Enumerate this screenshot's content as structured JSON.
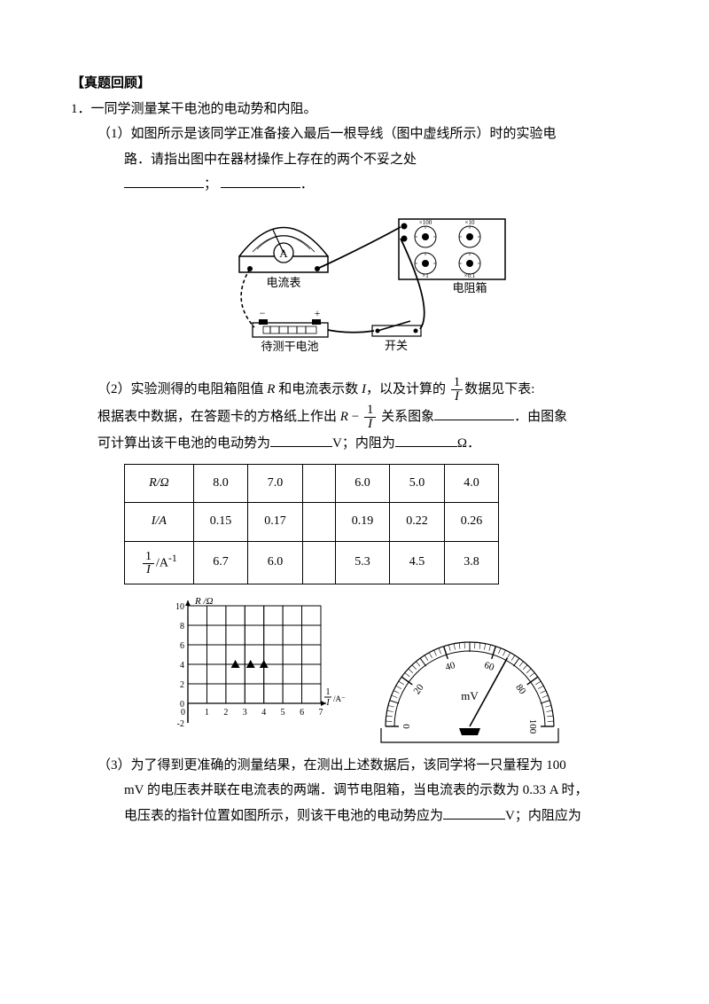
{
  "header": "【真题回顾】",
  "q_num": "1．",
  "q_stem": "一同学测量某干电池的电动势和内阻。",
  "part1_label": "（1）",
  "part1_text_a": "如图所示是该同学正准备接入最后一根导线（图中虚线所示）时的实验电",
  "part1_text_b": "路．请指出图中在器材操作上存在的两个不妥之处",
  "semicolon": "；",
  "period": "．",
  "circuit": {
    "ammeter_label": "A",
    "ammeter_text": "电流表",
    "resbox_text": "电阻箱",
    "battery_text": "待测干电池",
    "switch_text": "开关",
    "dial_top": "×100",
    "dial_top2": "×10",
    "dial_bot": "×1",
    "dial_bot2": "×0.1",
    "minus": "−",
    "plus": "+"
  },
  "part2_label": "（2）",
  "part2_text_a": "实验测得的电阻箱阻值 ",
  "part2_R": "R",
  "part2_text_b": " 和电流表示数 ",
  "part2_I": "I",
  "part2_text_c": "，以及计算的",
  "part2_text_d": "数据见下表:",
  "part2_line2_a": "根据表中数据，在答题卡的方格纸上作出",
  "part2_line2_b": "关系图象",
  "part2_line2_c": "．由图象",
  "part2_line3_a": "可计算出该干电池的电动势为",
  "part2_line3_b": "V；内阻为",
  "part2_line3_c": "Ω．",
  "table": {
    "type": "table",
    "columns": [
      "R/Ω",
      "I/A",
      "invI"
    ],
    "row1_head": "R/Ω",
    "row2_head": "I/A",
    "row3_head_frac_num": "1",
    "row3_head_frac_den": "I",
    "row3_head_unit": "/A",
    "row3_head_sup": "-1",
    "r1": [
      "8.0",
      "7.0",
      "",
      "6.0",
      "5.0",
      "4.0"
    ],
    "r2": [
      "0.15",
      "0.17",
      "",
      "0.19",
      "0.22",
      "0.26"
    ],
    "r3": [
      "6.7",
      "6.0",
      "",
      "5.3",
      "4.5",
      "3.8"
    ]
  },
  "grid_chart": {
    "type": "scatter",
    "xlim": [
      0,
      7
    ],
    "ylim": [
      -2,
      10
    ],
    "xticks": [
      0,
      1,
      2,
      3,
      4,
      5,
      6,
      7
    ],
    "yticks": [
      -2,
      0,
      2,
      4,
      6,
      8,
      10
    ],
    "xlabel_frac_num": "1",
    "xlabel_frac_den": "I",
    "xlabel_unit": "/A⁻¹",
    "ylabel": "R /Ω",
    "grid_color": "#000000",
    "bg_color": "#ffffff",
    "marker": "triangle",
    "marker_color": "#000000",
    "points_x": [
      2.5,
      3.3,
      4.0
    ],
    "points_y": [
      4.0,
      4.0,
      4.0
    ]
  },
  "voltmeter": {
    "type": "gauge",
    "unit": "mV",
    "major_ticks": [
      0,
      20,
      40,
      60,
      80,
      100
    ],
    "needle_value": 66,
    "arc_color": "#000000"
  },
  "part3_label": "（3）",
  "part3_a": "为了得到更准确的测量结果，在测出上述数据后，该同学将一只量程为 100",
  "part3_b": "mV 的电压表并联在电流表的两端．调节电阻箱，当电流表的示数为 0.33 A 时，",
  "part3_c": "电压表的指针位置如图所示，则该干电池的电动势应为",
  "part3_d": "V；内阻应为"
}
